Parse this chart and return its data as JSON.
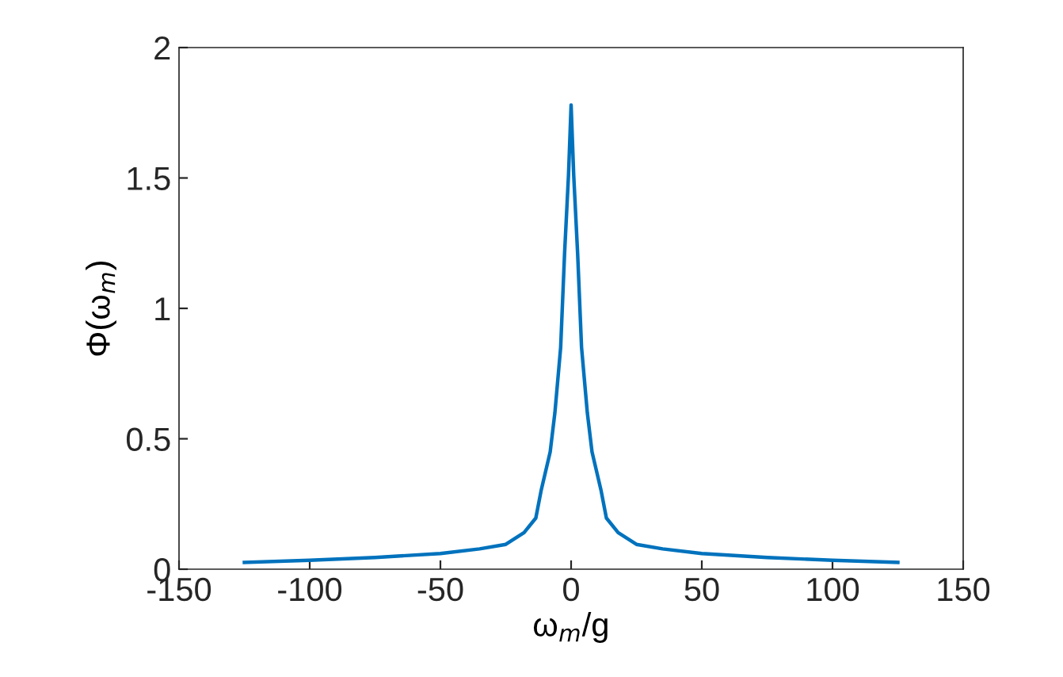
{
  "chart_data": {
    "type": "line",
    "xlabel": "ω$_{m}$/g",
    "ylabel": "Φ(ω$_{m}$)",
    "x": [
      -125,
      -100,
      -75,
      -50,
      -35,
      -25,
      -18,
      -13.5,
      -11.5,
      -8,
      -6.2,
      -4,
      -2.5,
      -1,
      0,
      1,
      2.5,
      4,
      6.2,
      8,
      11.5,
      13.5,
      18,
      25,
      35,
      50,
      75,
      100,
      125
    ],
    "series": [
      {
        "color": "#0072bd",
        "values": [
          0.026,
          0.034,
          0.045,
          0.06,
          0.078,
          0.095,
          0.14,
          0.196,
          0.3,
          0.45,
          0.6,
          0.85,
          1.21,
          1.51,
          1.78,
          1.51,
          1.21,
          0.85,
          0.6,
          0.45,
          0.3,
          0.196,
          0.14,
          0.095,
          0.078,
          0.06,
          0.045,
          0.034,
          0.026
        ]
      }
    ],
    "xlim": [
      -150,
      150
    ],
    "xticks": [
      -150,
      -100,
      -50,
      0,
      50,
      100,
      150
    ],
    "ylim": [
      0,
      2
    ],
    "yticks": [
      0,
      0.5,
      1,
      1.5,
      2
    ],
    "grid": false,
    "legend": false
  }
}
